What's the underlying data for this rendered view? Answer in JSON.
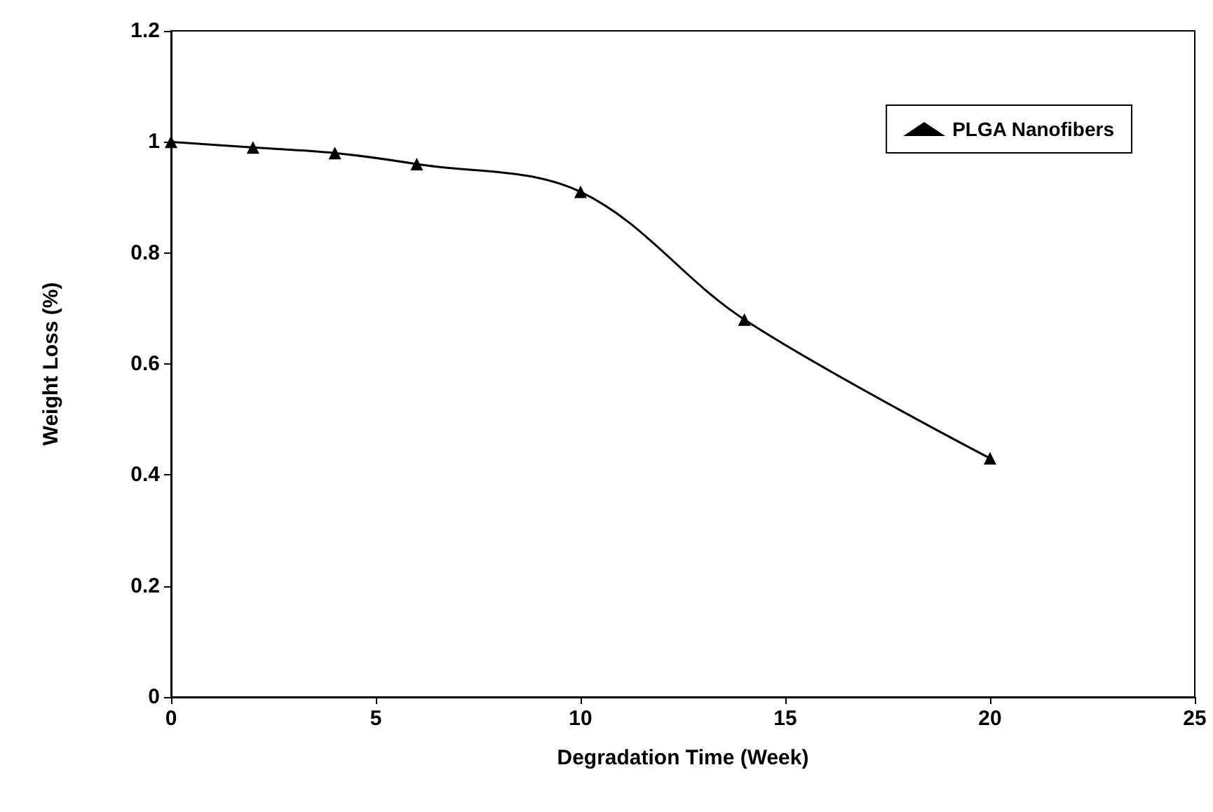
{
  "chart_data": {
    "type": "line",
    "xlabel": "Degradation Time (Week)",
    "ylabel": "Weight Loss (%)",
    "x": [
      0,
      2,
      4,
      6,
      10,
      14,
      20
    ],
    "series": [
      {
        "name": "PLGA Nanofibers",
        "color": "#000000",
        "values": [
          1.0,
          0.99,
          0.98,
          0.96,
          0.91,
          0.68,
          0.43
        ]
      }
    ],
    "xlim": [
      0,
      25
    ],
    "xticks": [
      0,
      5,
      10,
      15,
      20,
      25
    ],
    "ylim": [
      0,
      1.2
    ],
    "yticks": [
      0,
      0.2,
      0.4,
      0.6,
      0.8,
      1,
      1.2
    ],
    "grid": false,
    "legend": "top right",
    "marker": "triangle",
    "line_style": "solid"
  }
}
